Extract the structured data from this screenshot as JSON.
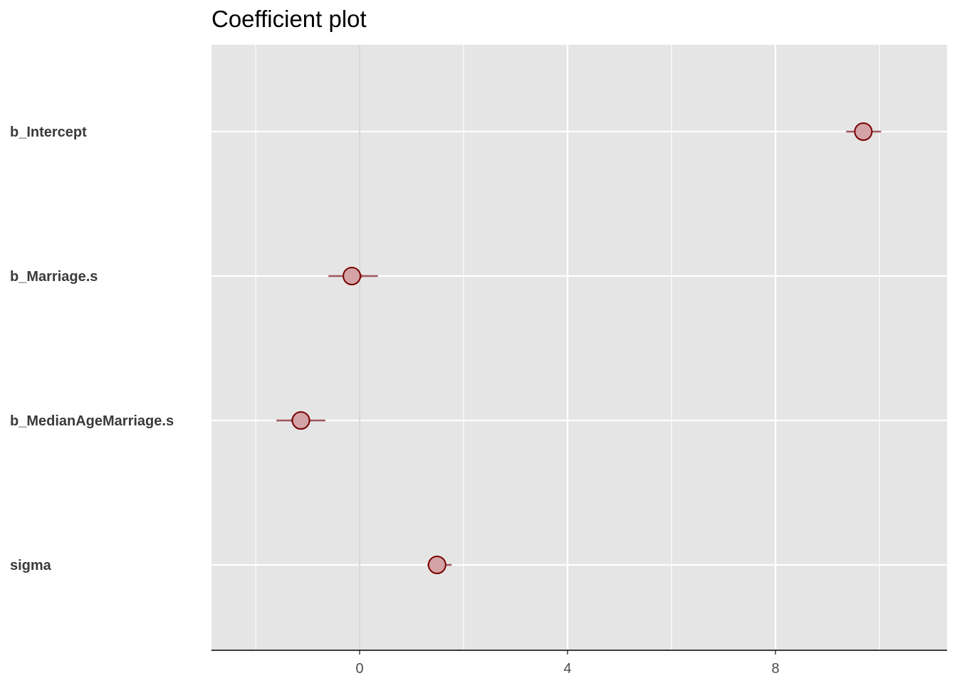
{
  "chart_data": {
    "type": "scatter",
    "title": "Coefficient plot",
    "xlabel": "",
    "ylabel": "",
    "xlim": [
      -2.85,
      11.3
    ],
    "x_ticks": [
      0,
      4,
      8
    ],
    "x_tick_labels": [
      "0",
      "4",
      "8"
    ],
    "x_minor_gridlines": [
      -2,
      2,
      6,
      10
    ],
    "reference_line_x": 0,
    "grid": true,
    "legend": "none",
    "categories": [
      "b_Intercept",
      "b_Marriage.s",
      "b_MedianAgeMarriage.s",
      "sigma"
    ],
    "series": [
      {
        "estimates": [
          9.69,
          -0.15,
          -1.13,
          1.49
        ],
        "inner_interval_low": [
          9.52,
          -0.3,
          -1.32,
          1.38
        ],
        "inner_interval_high": [
          9.86,
          0.05,
          -0.95,
          1.6
        ],
        "outer_interval_low": [
          9.36,
          -0.6,
          -1.6,
          1.3
        ],
        "outer_interval_high": [
          10.03,
          0.35,
          -0.66,
          1.77
        ]
      }
    ],
    "colors": {
      "panel_background": "#e5e5e5",
      "grid": "#ffffff",
      "reference_line": "#d9d9d9",
      "interval": "#a0575c",
      "point_fill": "#d3a3a6",
      "point_stroke": "#7a0000",
      "category_label": "#3a3a3a",
      "tick_label": "#4d4d4d",
      "axis_line": "#000000"
    }
  }
}
